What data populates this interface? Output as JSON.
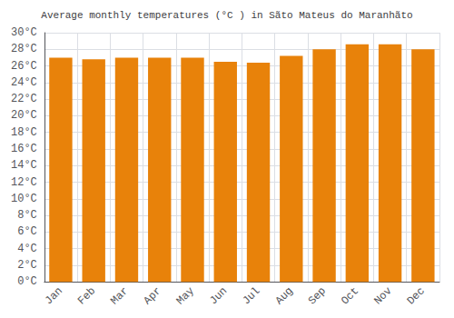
{
  "chart_data": {
    "type": "bar",
    "title": "Average monthly temperatures (°C ) in Sãto Mateus do Maranhãto",
    "categories": [
      "Jan",
      "Feb",
      "Mar",
      "Apr",
      "May",
      "Jun",
      "Jul",
      "Aug",
      "Sep",
      "Oct",
      "Nov",
      "Dec"
    ],
    "values": [
      27.0,
      26.8,
      27.0,
      27.0,
      27.0,
      26.5,
      26.4,
      27.2,
      28.0,
      28.6,
      28.6,
      28.0
    ],
    "color": "#E8820A",
    "ylim": [
      0,
      30
    ],
    "yticks": [
      {
        "value": 0,
        "label": "0°C"
      },
      {
        "value": 2,
        "label": "2°C"
      },
      {
        "value": 4,
        "label": "4°C"
      },
      {
        "value": 6,
        "label": "6°C"
      },
      {
        "value": 8,
        "label": "8°C"
      },
      {
        "value": 10,
        "label": "10°C"
      },
      {
        "value": 12,
        "label": "12°C"
      },
      {
        "value": 14,
        "label": "14°C"
      },
      {
        "value": 16,
        "label": "16°C"
      },
      {
        "value": 18,
        "label": "18°C"
      },
      {
        "value": 20,
        "label": "20°C"
      },
      {
        "value": 22,
        "label": "22°C"
      },
      {
        "value": 24,
        "label": "24°C"
      },
      {
        "value": 26,
        "label": "26°C"
      },
      {
        "value": 28,
        "label": "28°C"
      },
      {
        "value": 30,
        "label": "30°C"
      }
    ],
    "grid": true
  }
}
